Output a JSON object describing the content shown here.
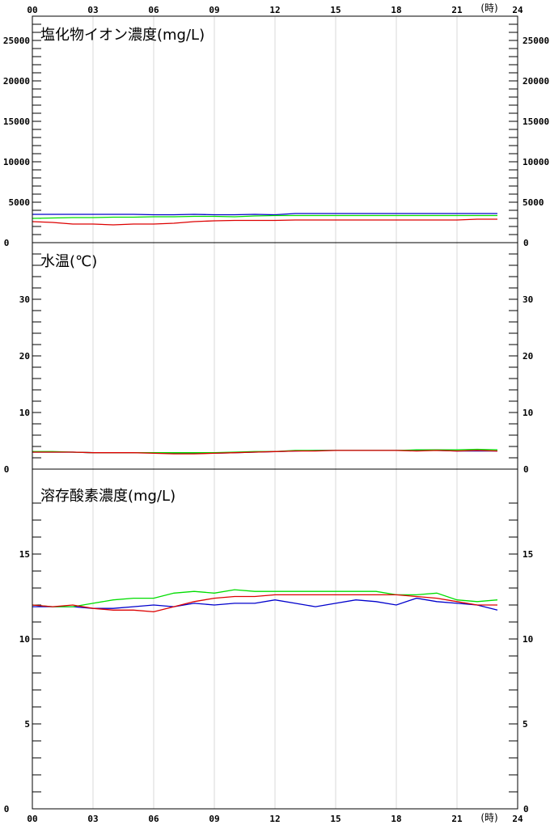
{
  "time_axis": {
    "tick_labels": [
      "00",
      "03",
      "06",
      "09",
      "12",
      "15",
      "18",
      "21",
      "24"
    ],
    "unit_label": "(時)"
  },
  "colors": {
    "series_1": "#0000cc",
    "series_2": "#00dd00",
    "series_3": "#dd0000",
    "frame": "#000000",
    "grid": "#d8d8d8"
  },
  "chart_data": [
    {
      "type": "line",
      "title": "塩化物イオン濃度(mg/L)",
      "xlim": [
        0,
        24
      ],
      "ylim": [
        0,
        28000
      ],
      "ytick_values": [
        0,
        5000,
        10000,
        15000,
        20000,
        25000
      ],
      "ytick_labels": [
        "0",
        "5000",
        "10000",
        "15000",
        "20000",
        "25000"
      ],
      "minor_step": 1000,
      "x": [
        0,
        1,
        2,
        3,
        4,
        5,
        6,
        7,
        8,
        9,
        10,
        11,
        12,
        13,
        14,
        15,
        16,
        17,
        18,
        19,
        20,
        21,
        22,
        23
      ],
      "series": [
        {
          "color": "#0000cc",
          "values": [
            3500,
            3500,
            3500,
            3500,
            3500,
            3500,
            3450,
            3450,
            3500,
            3450,
            3450,
            3500,
            3450,
            3600,
            3600,
            3600,
            3600,
            3600,
            3600,
            3600,
            3600,
            3600,
            3600,
            3600
          ]
        },
        {
          "color": "#00dd00",
          "values": [
            3000,
            3050,
            3100,
            3100,
            3150,
            3150,
            3200,
            3200,
            3250,
            3250,
            3200,
            3300,
            3350,
            3350,
            3350,
            3350,
            3350,
            3350,
            3350,
            3350,
            3350,
            3350,
            3350,
            3350
          ]
        },
        {
          "color": "#dd0000",
          "values": [
            2600,
            2500,
            2300,
            2300,
            2200,
            2300,
            2300,
            2400,
            2600,
            2700,
            2750,
            2750,
            2750,
            2800,
            2800,
            2800,
            2800,
            2800,
            2800,
            2800,
            2800,
            2800,
            2900,
            2900
          ]
        }
      ]
    },
    {
      "type": "line",
      "title": "水温(℃)",
      "xlim": [
        0,
        24
      ],
      "ylim": [
        0,
        40
      ],
      "ytick_values": [
        0,
        10,
        20,
        30
      ],
      "ytick_labels": [
        "0",
        "10",
        "20",
        "30"
      ],
      "minor_step": 2,
      "minor_max": 38,
      "x": [
        0,
        1,
        2,
        3,
        4,
        5,
        6,
        7,
        8,
        9,
        10,
        11,
        12,
        13,
        14,
        15,
        16,
        17,
        18,
        19,
        20,
        21,
        22,
        23
      ],
      "series": [
        {
          "color": "#0000cc",
          "values": [
            3.0,
            3.0,
            3.0,
            2.9,
            2.9,
            2.9,
            2.9,
            2.8,
            2.8,
            2.8,
            2.9,
            3.0,
            3.1,
            3.2,
            3.3,
            3.3,
            3.3,
            3.3,
            3.3,
            3.3,
            3.3,
            3.2,
            3.2,
            3.2
          ]
        },
        {
          "color": "#00dd00",
          "values": [
            3.1,
            3.1,
            3.0,
            2.9,
            2.9,
            2.9,
            2.9,
            2.9,
            2.9,
            2.9,
            3.0,
            3.1,
            3.1,
            3.3,
            3.3,
            3.3,
            3.3,
            3.3,
            3.3,
            3.4,
            3.4,
            3.4,
            3.5,
            3.4
          ]
        },
        {
          "color": "#dd0000",
          "values": [
            3.0,
            3.0,
            3.0,
            2.9,
            2.9,
            2.9,
            2.8,
            2.7,
            2.7,
            2.8,
            2.9,
            3.0,
            3.1,
            3.2,
            3.2,
            3.3,
            3.3,
            3.3,
            3.3,
            3.2,
            3.3,
            3.2,
            3.3,
            3.2
          ]
        }
      ]
    },
    {
      "type": "line",
      "title": "溶存酸素濃度(mg/L)",
      "xlim": [
        0,
        24
      ],
      "ylim": [
        0,
        20
      ],
      "ytick_values": [
        0,
        5,
        10,
        15
      ],
      "ytick_labels": [
        "0",
        "5",
        "10",
        "15"
      ],
      "minor_step": 1,
      "minor_max": 18,
      "x": [
        0,
        1,
        2,
        3,
        4,
        5,
        6,
        7,
        8,
        9,
        10,
        11,
        12,
        13,
        14,
        15,
        16,
        17,
        18,
        19,
        20,
        21,
        22,
        23
      ],
      "series": [
        {
          "color": "#0000cc",
          "values": [
            11.9,
            11.9,
            11.9,
            11.8,
            11.8,
            11.9,
            12.0,
            11.9,
            12.1,
            12.0,
            12.1,
            12.1,
            12.3,
            12.1,
            11.9,
            12.1,
            12.3,
            12.2,
            12.0,
            12.4,
            12.2,
            12.1,
            12.0,
            11.7
          ]
        },
        {
          "color": "#00dd00",
          "values": [
            12.0,
            11.9,
            11.9,
            12.1,
            12.3,
            12.4,
            12.4,
            12.7,
            12.8,
            12.7,
            12.9,
            12.8,
            12.8,
            12.8,
            12.8,
            12.8,
            12.8,
            12.8,
            12.6,
            12.6,
            12.7,
            12.3,
            12.2,
            12.3
          ]
        },
        {
          "color": "#dd0000",
          "values": [
            12.0,
            11.9,
            12.0,
            11.8,
            11.7,
            11.7,
            11.6,
            11.9,
            12.2,
            12.4,
            12.5,
            12.5,
            12.6,
            12.6,
            12.6,
            12.6,
            12.6,
            12.6,
            12.6,
            12.5,
            12.4,
            12.2,
            12.0,
            12.0
          ]
        }
      ]
    }
  ]
}
